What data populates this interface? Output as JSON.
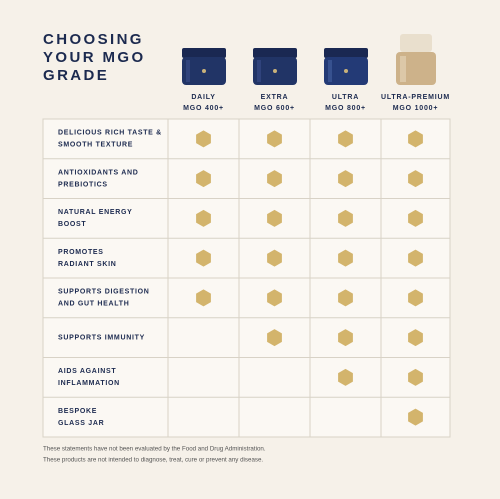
{
  "title_lines": [
    "CHOOSING",
    "YOUR MGO",
    "GRADE"
  ],
  "columns": [
    {
      "name": "DAILY",
      "grade": "MGO 400+"
    },
    {
      "name": "EXTRA",
      "grade": "MGO 600+"
    },
    {
      "name": "ULTRA",
      "grade": "MGO 800+"
    },
    {
      "name": "ULTRA-PREMIUM",
      "grade": "MGO 1000+"
    }
  ],
  "rows": [
    {
      "label_lines": [
        "DELICIOUS RICH TASTE &",
        "SMOOTH TEXTURE"
      ],
      "marks": [
        true,
        true,
        true,
        true
      ]
    },
    {
      "label_lines": [
        "ANTIOXIDANTS AND",
        "PREBIOTICS"
      ],
      "marks": [
        true,
        true,
        true,
        true
      ]
    },
    {
      "label_lines": [
        "NATURAL ENERGY",
        "BOOST"
      ],
      "marks": [
        true,
        true,
        true,
        true
      ]
    },
    {
      "label_lines": [
        "PROMOTES",
        "RADIANT SKIN"
      ],
      "marks": [
        true,
        true,
        true,
        true
      ]
    },
    {
      "label_lines": [
        "SUPPORTS DIGESTION",
        "AND GUT HEALTH"
      ],
      "marks": [
        true,
        true,
        true,
        true
      ]
    },
    {
      "label_lines": [
        "SUPPORTS IMMUNITY"
      ],
      "marks": [
        false,
        true,
        true,
        true
      ]
    },
    {
      "label_lines": [
        "AIDS AGAINST",
        "INFLAMMATION"
      ],
      "marks": [
        false,
        false,
        true,
        true
      ]
    },
    {
      "label_lines": [
        "BESPOKE",
        "GLASS JAR"
      ],
      "marks": [
        false,
        false,
        false,
        true
      ]
    }
  ],
  "footnote_lines": [
    "These statements have not been evaluated by the Food and Drug Administration.",
    "These products are not intended to diagnose, treat, cure or prevent any disease."
  ]
}
